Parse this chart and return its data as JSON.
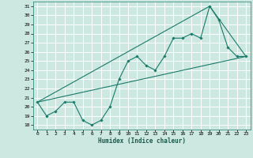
{
  "xlabel": "Humidex (Indice chaleur)",
  "xlim": [
    -0.5,
    23.5
  ],
  "ylim": [
    17.5,
    31.5
  ],
  "xticks": [
    0,
    1,
    2,
    3,
    4,
    5,
    6,
    7,
    8,
    9,
    10,
    11,
    12,
    13,
    14,
    15,
    16,
    17,
    18,
    19,
    20,
    21,
    22,
    23
  ],
  "yticks": [
    18,
    19,
    20,
    21,
    22,
    23,
    24,
    25,
    26,
    27,
    28,
    29,
    30,
    31
  ],
  "bg_color": "#cce8e0",
  "grid_color": "#ffffff",
  "line_color": "#1a7a6a",
  "line1_x": [
    0,
    1,
    2,
    3,
    4,
    5,
    6,
    7,
    8,
    9,
    10,
    11,
    12,
    13,
    14,
    15,
    16,
    17,
    18,
    19,
    20,
    21,
    22,
    23
  ],
  "line1_y": [
    20.5,
    19.0,
    19.5,
    20.5,
    20.5,
    18.5,
    18.0,
    18.5,
    20.0,
    23.0,
    25.0,
    25.5,
    24.5,
    24.0,
    25.5,
    27.5,
    27.5,
    28.0,
    27.5,
    31.0,
    29.5,
    26.5,
    25.5,
    25.5
  ],
  "line2_x": [
    0,
    23
  ],
  "line2_y": [
    20.5,
    25.5
  ],
  "line3_x": [
    0,
    19,
    23
  ],
  "line3_y": [
    20.5,
    31.0,
    25.5
  ]
}
